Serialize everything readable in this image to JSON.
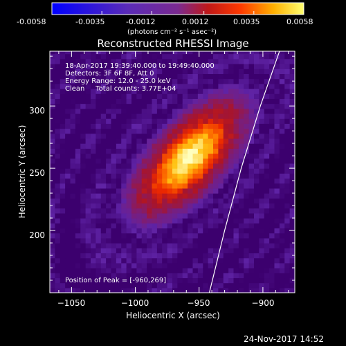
{
  "colorbar": {
    "ticks": [
      "-0.0058",
      "-0.0035",
      "-0.0012",
      "0.0012",
      "0.0035",
      "0.0058"
    ],
    "min": -0.0058,
    "max": 0.0058,
    "unit": "(photons cm⁻² s⁻¹ asec⁻²)"
  },
  "chart_data": {
    "type": "heatmap",
    "title": "Reconstructed RHESSI Image",
    "xlabel": "Heliocentric X (arcsec)",
    "ylabel": "Heliocentric Y (arcsec)",
    "xlim": [
      -1067,
      -875
    ],
    "ylim": [
      150,
      344
    ],
    "xticks": [
      -1050,
      -1000,
      -950,
      -900
    ],
    "yticks": [
      200,
      250,
      300
    ],
    "xtick_labels": [
      "−1050",
      "−1000",
      "−950",
      "−900"
    ],
    "ytick_labels": [
      "200",
      "250",
      "300"
    ],
    "annotations": [
      "18-Apr-2017 19:39:40.000 to 19:49:40.000",
      "Detectors: 3F 6F 8F, Att 0",
      "Energy Range: 12.0 - 25.0 keV",
      "Clean     Total counts: 3.77E+04"
    ],
    "peak": {
      "x": -960,
      "y": 269
    },
    "peak_label": "Position of Peak = [-960,269]",
    "source": {
      "x": -958,
      "y": 258,
      "sx": 48,
      "sy": 22,
      "angle_deg": 48,
      "amplitude": 0.0058
    },
    "limb": [
      [
        -942,
        150
      ],
      [
        -930,
        200
      ],
      [
        -917,
        250
      ],
      [
        -902,
        300
      ],
      [
        -887,
        344
      ]
    ],
    "limb_color": "#ffffff"
  },
  "footer": {
    "timestamp": "24-Nov-2017 14:52"
  }
}
